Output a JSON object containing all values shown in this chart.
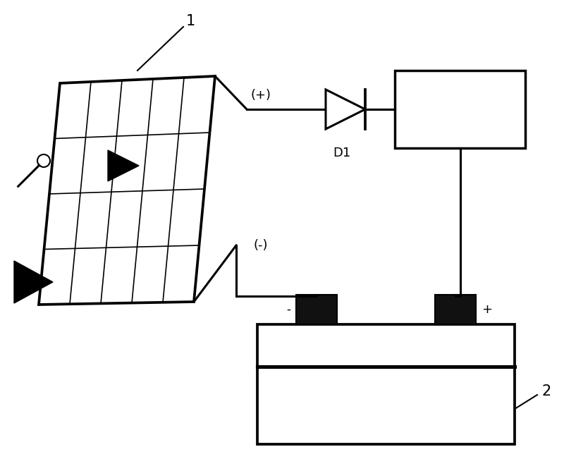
{
  "bg_color": "#ffffff",
  "line_color": "#000000",
  "label_1": "1",
  "label_2": "2",
  "label_D1": "D1",
  "label_plus": "(+)",
  "label_minus": "(-)",
  "label_terminal_minus": "-",
  "label_terminal_plus": "+"
}
